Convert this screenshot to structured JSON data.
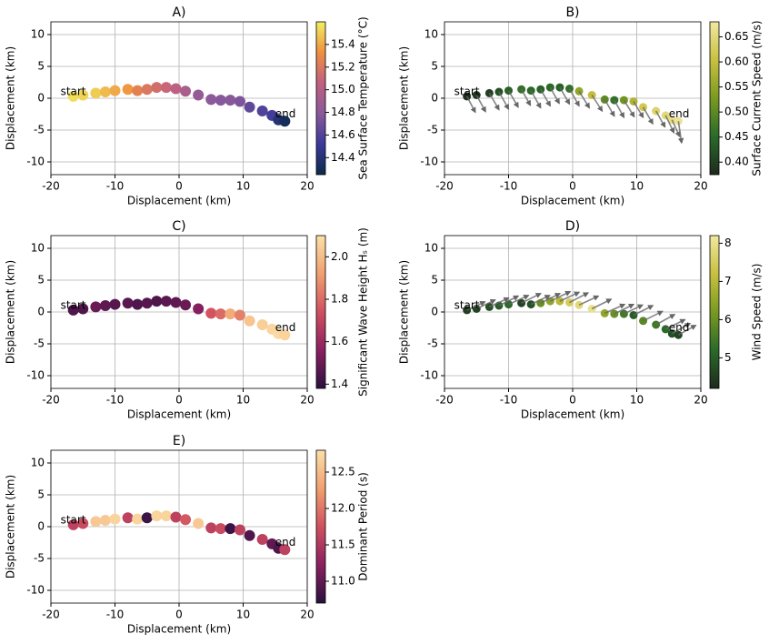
{
  "chart_data": [
    {
      "type": "scatter",
      "title": "A)",
      "xlabel": "Displacement (km)",
      "ylabel": "Displacement (km)",
      "colorbar_label": "Sea Surface Temperature (°C)",
      "xlim": [
        -20,
        20
      ],
      "ylim": [
        -12,
        12
      ],
      "xticks": [
        -20,
        -10,
        0,
        10,
        20
      ],
      "yticks": [
        -10,
        -5,
        0,
        5,
        10
      ],
      "grid": true,
      "x": [
        -16.5,
        -15,
        -13,
        -11.5,
        -10,
        -8,
        -6.5,
        -5,
        -3.5,
        -2,
        -0.5,
        1,
        3,
        5,
        6.5,
        8,
        9.5,
        11,
        13,
        14.5,
        15.5,
        16.5
      ],
      "y": [
        0.3,
        0.5,
        0.8,
        1.0,
        1.2,
        1.4,
        1.2,
        1.4,
        1.7,
        1.7,
        1.5,
        1.1,
        0.5,
        -0.2,
        -0.3,
        -0.3,
        -0.5,
        -1.4,
        -2.0,
        -2.7,
        -3.4,
        -3.6
      ],
      "c": [
        15.55,
        15.52,
        15.5,
        15.45,
        15.4,
        15.35,
        15.25,
        15.2,
        15.15,
        15.1,
        15.05,
        14.95,
        14.85,
        14.8,
        14.78,
        14.78,
        14.75,
        14.65,
        14.6,
        14.55,
        14.4,
        14.3
      ],
      "clim": [
        14.25,
        15.6
      ],
      "cticks": [
        {
          "value": 14.4,
          "label": "14.4"
        },
        {
          "value": 14.6,
          "label": "14.6"
        },
        {
          "value": 14.8,
          "label": "14.8"
        },
        {
          "value": 15.0,
          "label": "15.0"
        },
        {
          "value": 15.2,
          "label": "15.2"
        },
        {
          "value": 15.4,
          "label": "15.4"
        }
      ],
      "colormap": [
        "#0d2a4a",
        "#3a3a9a",
        "#8a5a9a",
        "#c06080",
        "#f09040",
        "#f0f060"
      ],
      "annotations": [
        {
          "text": "start",
          "x": -18.5,
          "y": 1
        },
        {
          "text": "end",
          "x": 15,
          "y": -2.5
        }
      ]
    },
    {
      "type": "scatter",
      "title": "B)",
      "xlabel": "Displacement (km)",
      "ylabel": "Displacement (km)",
      "colorbar_label": "Surface Current Speed (m/s)",
      "xlim": [
        -20,
        20
      ],
      "ylim": [
        -12,
        12
      ],
      "xticks": [
        -20,
        -10,
        0,
        10,
        20
      ],
      "yticks": [
        -10,
        -5,
        0,
        5,
        10
      ],
      "grid": true,
      "x": [
        -16.5,
        -15,
        -13,
        -11.5,
        -10,
        -8,
        -6.5,
        -5,
        -3.5,
        -2,
        -0.5,
        1,
        3,
        5,
        6.5,
        8,
        9.5,
        11,
        13,
        14.5,
        15.5,
        16.5
      ],
      "y": [
        0.3,
        0.5,
        0.8,
        1.0,
        1.2,
        1.4,
        1.2,
        1.4,
        1.7,
        1.7,
        1.5,
        1.1,
        0.5,
        -0.2,
        -0.3,
        -0.3,
        -0.5,
        -1.4,
        -2.0,
        -2.7,
        -3.4,
        -3.6
      ],
      "c": [
        0.38,
        0.39,
        0.4,
        0.42,
        0.44,
        0.46,
        0.45,
        0.44,
        0.45,
        0.44,
        0.46,
        0.55,
        0.6,
        0.5,
        0.46,
        0.52,
        0.58,
        0.62,
        0.64,
        0.65,
        0.66,
        0.67
      ],
      "u": [
        1.3,
        1.4,
        1.5,
        1.5,
        1.5,
        1.4,
        1.5,
        1.5,
        1.4,
        1.5,
        1.5,
        1.6,
        1.6,
        1.5,
        1.5,
        1.6,
        1.5,
        1.5,
        1.4,
        1.3,
        1.2,
        0.5
      ],
      "v": [
        -2.5,
        -2.6,
        -2.6,
        -2.7,
        -2.6,
        -2.5,
        -2.7,
        -2.6,
        -2.5,
        -2.6,
        -2.7,
        -2.6,
        -2.5,
        -2.6,
        -2.7,
        -2.6,
        -2.5,
        -2.6,
        -2.5,
        -2.7,
        -2.6,
        -3.4
      ],
      "clim": [
        0.375,
        0.68
      ],
      "cticks": [
        {
          "value": 0.4,
          "label": "0.40"
        },
        {
          "value": 0.45,
          "label": "0.45"
        },
        {
          "value": 0.5,
          "label": "0.50"
        },
        {
          "value": 0.55,
          "label": "0.55"
        },
        {
          "value": 0.6,
          "label": "0.60"
        },
        {
          "value": 0.65,
          "label": "0.65"
        }
      ],
      "colormap": [
        "#1e2a1e",
        "#2a6a2a",
        "#7a9a20",
        "#c8c040",
        "#f2e8a0"
      ],
      "annotations": [
        {
          "text": "start",
          "x": -18.5,
          "y": 1
        },
        {
          "text": "end",
          "x": 15,
          "y": -2.5
        }
      ]
    },
    {
      "type": "scatter",
      "title": "C)",
      "xlabel": "Displacement (km)",
      "ylabel": "Displacement (km)",
      "colorbar_label": "Significant Wave Height Hₛ (m)",
      "xlim": [
        -20,
        20
      ],
      "ylim": [
        -12,
        12
      ],
      "xticks": [
        -20,
        -10,
        0,
        10,
        20
      ],
      "yticks": [
        -10,
        -5,
        0,
        5,
        10
      ],
      "grid": true,
      "x": [
        -16.5,
        -15,
        -13,
        -11.5,
        -10,
        -8,
        -6.5,
        -5,
        -3.5,
        -2,
        -0.5,
        1,
        3,
        5,
        6.5,
        8,
        9.5,
        11,
        13,
        14.5,
        15.5,
        16.5
      ],
      "y": [
        0.3,
        0.5,
        0.8,
        1.0,
        1.2,
        1.4,
        1.2,
        1.4,
        1.7,
        1.7,
        1.5,
        1.1,
        0.5,
        -0.2,
        -0.3,
        -0.3,
        -0.5,
        -1.4,
        -2.0,
        -2.7,
        -3.4,
        -3.6
      ],
      "c": [
        1.45,
        1.45,
        1.5,
        1.48,
        1.46,
        1.47,
        1.45,
        1.46,
        1.45,
        1.47,
        1.48,
        1.5,
        1.55,
        1.75,
        1.8,
        1.95,
        1.85,
        2.02,
        2.05,
        2.07,
        2.08,
        2.06
      ],
      "clim": [
        1.38,
        2.1
      ],
      "cticks": [
        1.4,
        1.6,
        1.8,
        {
          "value": 2.0,
          "label": "2.0"
        }
      ],
      "colormap": [
        "#2a1040",
        "#8a2060",
        "#d05060",
        "#f0a070",
        "#fce0a8"
      ],
      "annotations": [
        {
          "text": "start",
          "x": -18.5,
          "y": 1
        },
        {
          "text": "end",
          "x": 15,
          "y": -2.5
        }
      ]
    },
    {
      "type": "scatter",
      "title": "D)",
      "xlabel": "Displacement (km)",
      "ylabel": "Displacement (km)",
      "colorbar_label": "Wind Speed (m/s)",
      "xlim": [
        -20,
        20
      ],
      "ylim": [
        -12,
        12
      ],
      "xticks": [
        -20,
        -10,
        0,
        10,
        20
      ],
      "yticks": [
        -10,
        -5,
        0,
        5,
        10
      ],
      "grid": true,
      "x": [
        -16.5,
        -15,
        -13,
        -11.5,
        -10,
        -8,
        -6.5,
        -5,
        -3.5,
        -2,
        -0.5,
        1,
        3,
        5,
        6.5,
        8,
        9.5,
        11,
        13,
        14.5,
        15.5,
        16.5
      ],
      "y": [
        0.3,
        0.5,
        0.8,
        1.0,
        1.2,
        1.4,
        1.2,
        1.4,
        1.7,
        1.7,
        1.5,
        1.1,
        0.5,
        -0.2,
        -0.3,
        -0.3,
        -0.5,
        -1.4,
        -2.0,
        -2.7,
        -3.4,
        -3.6
      ],
      "c": [
        4.5,
        4.6,
        4.8,
        5.0,
        5.2,
        4.6,
        4.8,
        6.0,
        6.5,
        7.0,
        7.5,
        7.8,
        8.0,
        6.5,
        6.0,
        5.5,
        5.0,
        5.8,
        5.5,
        5.2,
        4.8,
        4.6
      ],
      "u": [
        2.8,
        2.9,
        3.0,
        3.0,
        3.1,
        3.0,
        2.9,
        3.0,
        3.1,
        3.0,
        2.9,
        3.0,
        3.0,
        3.1,
        3.0,
        2.9,
        3.0,
        3.0,
        2.9,
        3.0,
        2.8,
        2.7
      ],
      "v": [
        1.3,
        1.4,
        1.4,
        1.5,
        1.4,
        1.5,
        1.4,
        1.5,
        1.5,
        1.4,
        1.5,
        1.4,
        1.5,
        1.4,
        1.5,
        1.4,
        1.5,
        1.5,
        1.6,
        1.5,
        1.6,
        1.5
      ],
      "clim": [
        4.2,
        8.2
      ],
      "cticks": [
        5,
        6,
        7,
        8
      ],
      "colormap": [
        "#1e2a1e",
        "#2a6a2a",
        "#7a9a20",
        "#c8c040",
        "#f2e8a0"
      ],
      "annotations": [
        {
          "text": "start",
          "x": -18.5,
          "y": 1
        },
        {
          "text": "end",
          "x": 15,
          "y": -2.5
        }
      ]
    },
    {
      "type": "scatter",
      "title": "E)",
      "xlabel": "Displacement (km)",
      "ylabel": "Displacement (km)",
      "colorbar_label": "Dominant Period (s)",
      "xlim": [
        -20,
        20
      ],
      "ylim": [
        -12,
        12
      ],
      "xticks": [
        -20,
        -10,
        0,
        10,
        20
      ],
      "yticks": [
        -10,
        -5,
        0,
        5,
        10
      ],
      "grid": true,
      "x": [
        -16.5,
        -15,
        -13,
        -11.5,
        -10,
        -8,
        -6.5,
        -5,
        -3.5,
        -2,
        -0.5,
        1,
        3,
        5,
        6.5,
        8,
        9.5,
        11,
        13,
        14.5,
        15.5,
        16.5
      ],
      "y": [
        0.3,
        0.5,
        0.8,
        1.0,
        1.2,
        1.4,
        1.2,
        1.4,
        1.7,
        1.7,
        1.5,
        1.1,
        0.5,
        -0.2,
        -0.3,
        -0.3,
        -0.5,
        -1.4,
        -2.0,
        -2.7,
        -3.4,
        -3.6
      ],
      "c": [
        11.6,
        11.7,
        12.6,
        12.6,
        12.7,
        11.6,
        12.7,
        10.8,
        12.7,
        12.7,
        11.6,
        11.8,
        12.6,
        11.6,
        11.7,
        10.8,
        11.6,
        10.9,
        11.6,
        11.0,
        10.9,
        11.6
      ],
      "clim": [
        10.7,
        12.8
      ],
      "cticks": [
        {
          "value": 11.0,
          "label": "11.0"
        },
        11.5,
        {
          "value": 12.0,
          "label": "12.0"
        },
        12.5
      ],
      "colormap": [
        "#2a1040",
        "#8a2060",
        "#d05060",
        "#f0a070",
        "#fce0a8"
      ],
      "annotations": [
        {
          "text": "start",
          "x": -18.5,
          "y": 1
        },
        {
          "text": "end",
          "x": 15,
          "y": -2.5
        }
      ]
    }
  ]
}
